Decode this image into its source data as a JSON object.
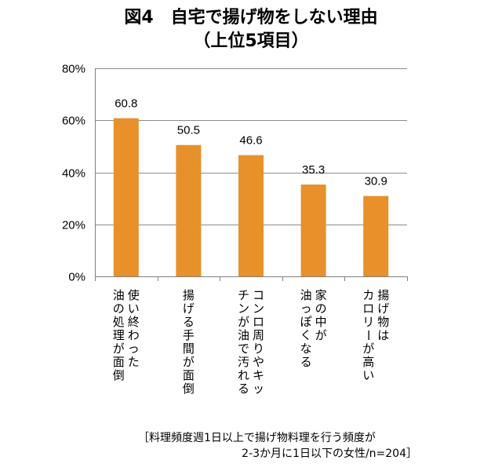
{
  "title": {
    "line1": "図4　自宅で揚げ物をしない理由",
    "line2": "（上位5項目）"
  },
  "note": {
    "line1": "［料理頻度週1日以上で揚げ物料理を行う頻度が",
    "line2": "2-3か月に1日以下の女性/n=204］"
  },
  "colors": {
    "bar": "#e8902a",
    "axis": "#808080",
    "grid": "#8c8c8c"
  },
  "chart_data": {
    "type": "bar",
    "title": "図4　自宅で揚げ物をしない理由（上位5項目）",
    "ylabel": "",
    "xlabel": "",
    "ylim": [
      0,
      80
    ],
    "yticks": [
      0,
      20,
      40,
      60,
      80
    ],
    "ytick_labels": [
      "0%",
      "20%",
      "40%",
      "60%",
      "80%"
    ],
    "categories": [
      [
        "使い終わった",
        "油の処理が面倒"
      ],
      [
        "揚げる手間が面倒"
      ],
      [
        "コンロ周りやキッ",
        "チンが油で汚れる"
      ],
      [
        "家の中が",
        "油っぽくなる"
      ],
      [
        "揚げ物は",
        "カロリーが高い"
      ]
    ],
    "values": [
      60.8,
      50.5,
      46.6,
      35.3,
      30.9
    ],
    "data_labels": [
      "60.8",
      "50.5",
      "46.6",
      "35.3",
      "30.9"
    ]
  }
}
